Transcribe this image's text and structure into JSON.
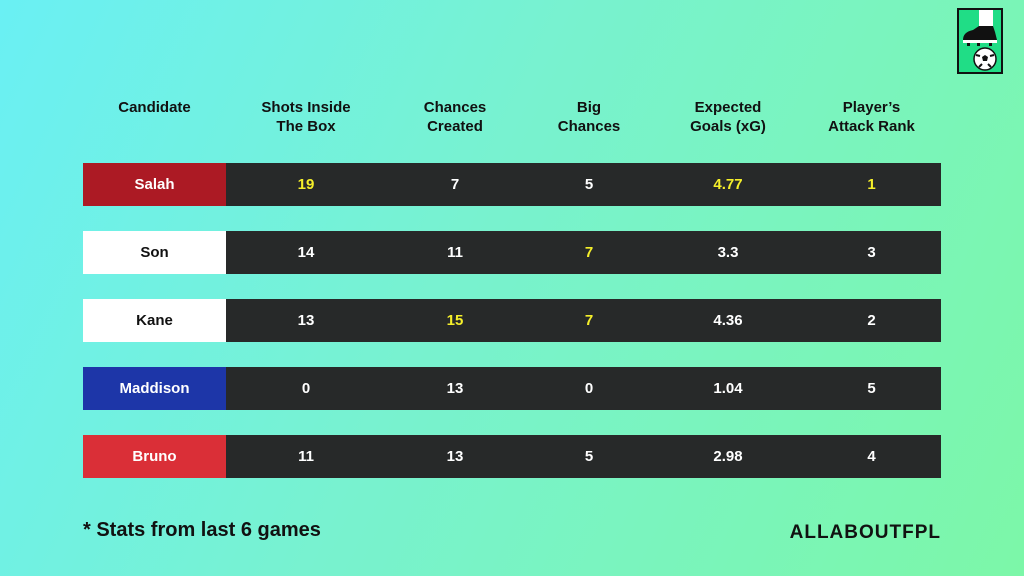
{
  "headers": {
    "candidate": "Candidate",
    "shots": "Shots Inside\nThe Box",
    "chances": "Chances\nCreated",
    "big_chances": "Big\nChances",
    "xg": "Expected\nGoals (xG)",
    "rank": "Player’s\nAttack Rank"
  },
  "rows": [
    {
      "name": "Salah",
      "color": "#ac1a24",
      "text_color": "#ffffff",
      "shots": "19",
      "chances": "7",
      "big_chances": "5",
      "xg": "4.77",
      "rank": "1"
    },
    {
      "name": "Son",
      "color": "#ffffff",
      "text_color": "#111111",
      "shots": "14",
      "chances": "11",
      "big_chances": "7",
      "xg": "3.3",
      "rank": "3"
    },
    {
      "name": "Kane",
      "color": "#ffffff",
      "text_color": "#111111",
      "shots": "13",
      "chances": "15",
      "big_chances": "7",
      "xg": "4.36",
      "rank": "2"
    },
    {
      "name": "Maddison",
      "color": "#1d36a8",
      "text_color": "#ffffff",
      "shots": "0",
      "chances": "13",
      "big_chances": "0",
      "xg": "1.04",
      "rank": "5"
    },
    {
      "name": "Bruno",
      "color": "#da2f37",
      "text_color": "#ffffff",
      "shots": "11",
      "chances": "13",
      "big_chances": "5",
      "xg": "2.98",
      "rank": "4"
    }
  ],
  "highlights": {
    "Salah": [
      "shots",
      "xg",
      "rank"
    ],
    "Son": [
      "big_chances"
    ],
    "Kane": [
      "chances",
      "big_chances"
    ]
  },
  "colors": {
    "highlight": "#f5ef2a",
    "stat_bg": "#272929",
    "logo_bg": "#20dd86"
  },
  "footnote": "*  Stats from last 6 games",
  "brand": "ALLABOUTFPL",
  "logo_icon": "boot-and-football-icon",
  "chart_data": {
    "type": "table",
    "columns": [
      "Candidate",
      "Shots Inside The Box",
      "Chances Created",
      "Big Chances",
      "Expected Goals (xG)",
      "Player’s Attack Rank"
    ],
    "rows": [
      [
        "Salah",
        19,
        7,
        5,
        4.77,
        1
      ],
      [
        "Son",
        14,
        11,
        7,
        3.3,
        3
      ],
      [
        "Kane",
        13,
        15,
        7,
        4.36,
        2
      ],
      [
        "Maddison",
        0,
        13,
        0,
        1.04,
        5
      ],
      [
        "Bruno",
        11,
        13,
        5,
        2.98,
        4
      ]
    ]
  }
}
